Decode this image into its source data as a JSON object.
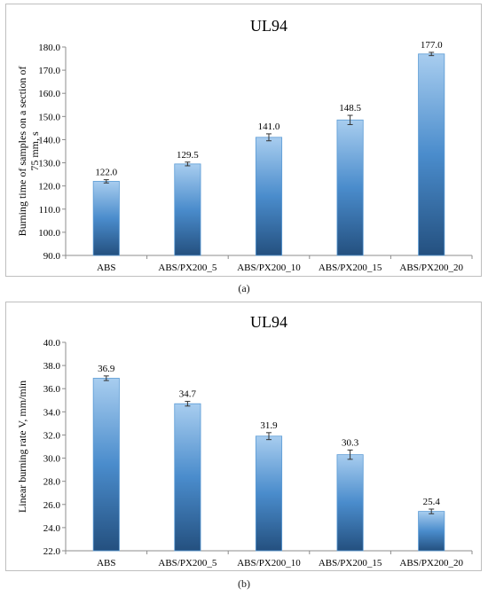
{
  "chart_data": [
    {
      "type": "bar",
      "title": "UL94",
      "ylabel": "Burning time of samples on a section of 75 mm, s",
      "ylabel_lines": [
        "Burning time of samples on a section of",
        "75 mm, s"
      ],
      "categories": [
        "ABS",
        "ABS/PX200_5",
        "ABS/PX200_10",
        "ABS/PX200_15",
        "ABS/PX200_20"
      ],
      "values": [
        122.0,
        129.5,
        141.0,
        148.5,
        177.0
      ],
      "value_labels": [
        "122.0",
        "129.5",
        "141.0",
        "148.5",
        "177.0"
      ],
      "errors": [
        0.7,
        0.8,
        1.5,
        2.0,
        0.7
      ],
      "ylim": [
        90,
        180
      ],
      "yticks": [
        "90.0",
        "100.0",
        "110.0",
        "120.0",
        "130.0",
        "140.0",
        "150.0",
        "160.0",
        "170.0",
        "180.0"
      ],
      "grid": false,
      "caption": "(a)"
    },
    {
      "type": "bar",
      "title": "UL94",
      "ylabel": "Linear burning rate V, mm/min",
      "ylabel_lines": [
        "Linear burning rate V, mm/min"
      ],
      "categories": [
        "ABS",
        "ABS/PX200_5",
        "ABS/PX200_10",
        "ABS/PX200_15",
        "ABS/PX200_20"
      ],
      "values": [
        36.9,
        34.7,
        31.9,
        30.3,
        25.4
      ],
      "value_labels": [
        "36.9",
        "34.7",
        "31.9",
        "30.3",
        "25.4"
      ],
      "errors": [
        0.2,
        0.2,
        0.3,
        0.4,
        0.2
      ],
      "ylim": [
        22,
        40
      ],
      "yticks": [
        "22.0",
        "24.0",
        "26.0",
        "28.0",
        "30.0",
        "32.0",
        "34.0",
        "36.0",
        "38.0",
        "40.0"
      ],
      "grid": false,
      "caption": "(b)"
    }
  ],
  "colors": {
    "bar_top": "#a8cdef",
    "bar_mid": "#4a8ccc",
    "bar_bottom": "#24507f",
    "axis": "#8c8c8c",
    "border": "#bfbfbf"
  }
}
